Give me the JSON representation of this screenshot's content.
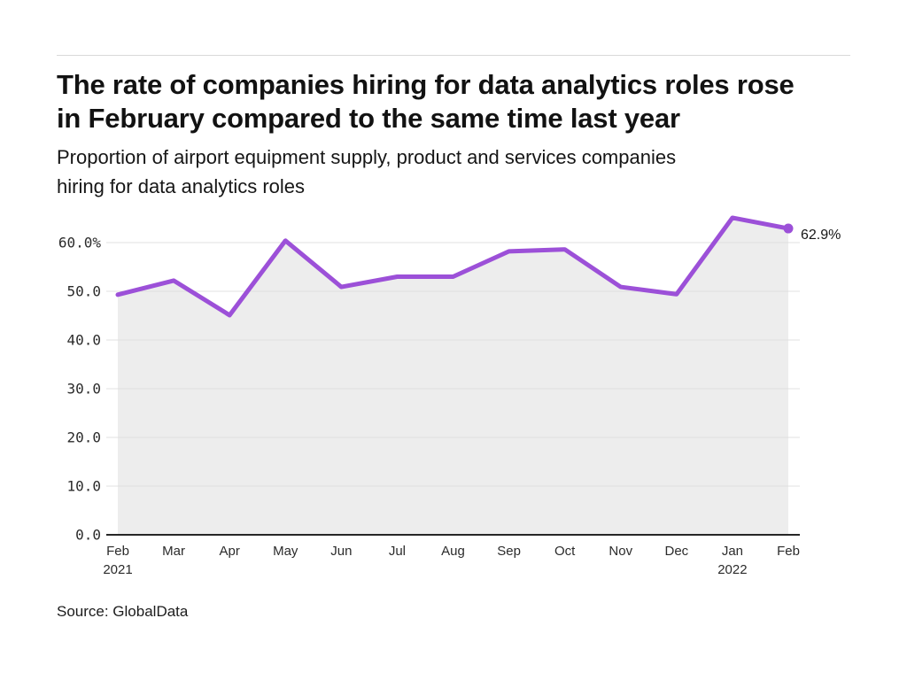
{
  "header": {
    "title": "The rate of companies hiring for data analytics roles rose in February compared to the same time last year",
    "subtitle": "Proportion of airport equipment supply, product and services companies hiring for data analytics roles"
  },
  "source": {
    "label": "Source: GlobalData"
  },
  "chart_data": {
    "type": "line",
    "title": "The rate of companies hiring for data analytics roles rose in February compared to the same time last year",
    "subtitle": "Proportion of airport equipment supply, product and services companies hiring for data analytics roles",
    "categories": [
      {
        "label": "Feb",
        "year": "2021"
      },
      {
        "label": "Mar"
      },
      {
        "label": "Apr"
      },
      {
        "label": "May"
      },
      {
        "label": "Jun"
      },
      {
        "label": "Jul"
      },
      {
        "label": "Aug"
      },
      {
        "label": "Sep"
      },
      {
        "label": "Oct"
      },
      {
        "label": "Nov"
      },
      {
        "label": "Dec"
      },
      {
        "label": "Jan",
        "year": "2022"
      },
      {
        "label": "Feb"
      }
    ],
    "series": [
      {
        "name": "Proportion of companies hiring for data analytics roles (%)",
        "values": [
          49.3,
          52.2,
          45.1,
          60.4,
          50.9,
          53.0,
          53.0,
          58.2,
          58.6,
          50.9,
          49.4,
          65.1,
          62.9
        ]
      }
    ],
    "end_label": "62.9%",
    "y_axis": {
      "min": 0,
      "max_gridline": 60,
      "ticks": [
        {
          "value": 0,
          "label": "0.0"
        },
        {
          "value": 10,
          "label": "10.0"
        },
        {
          "value": 20,
          "label": "20.0"
        },
        {
          "value": 30,
          "label": "30.0"
        },
        {
          "value": 40,
          "label": "40.0"
        },
        {
          "value": 50,
          "label": "50.0"
        },
        {
          "value": 60,
          "label": "60.0%"
        }
      ]
    },
    "grid": "horizontal",
    "legend": "none",
    "colors": {
      "line": "#9c50d8",
      "marker": "#9c50d8",
      "area": "#ededed",
      "grid": "#e0e0e0",
      "axis": "#262626"
    }
  }
}
